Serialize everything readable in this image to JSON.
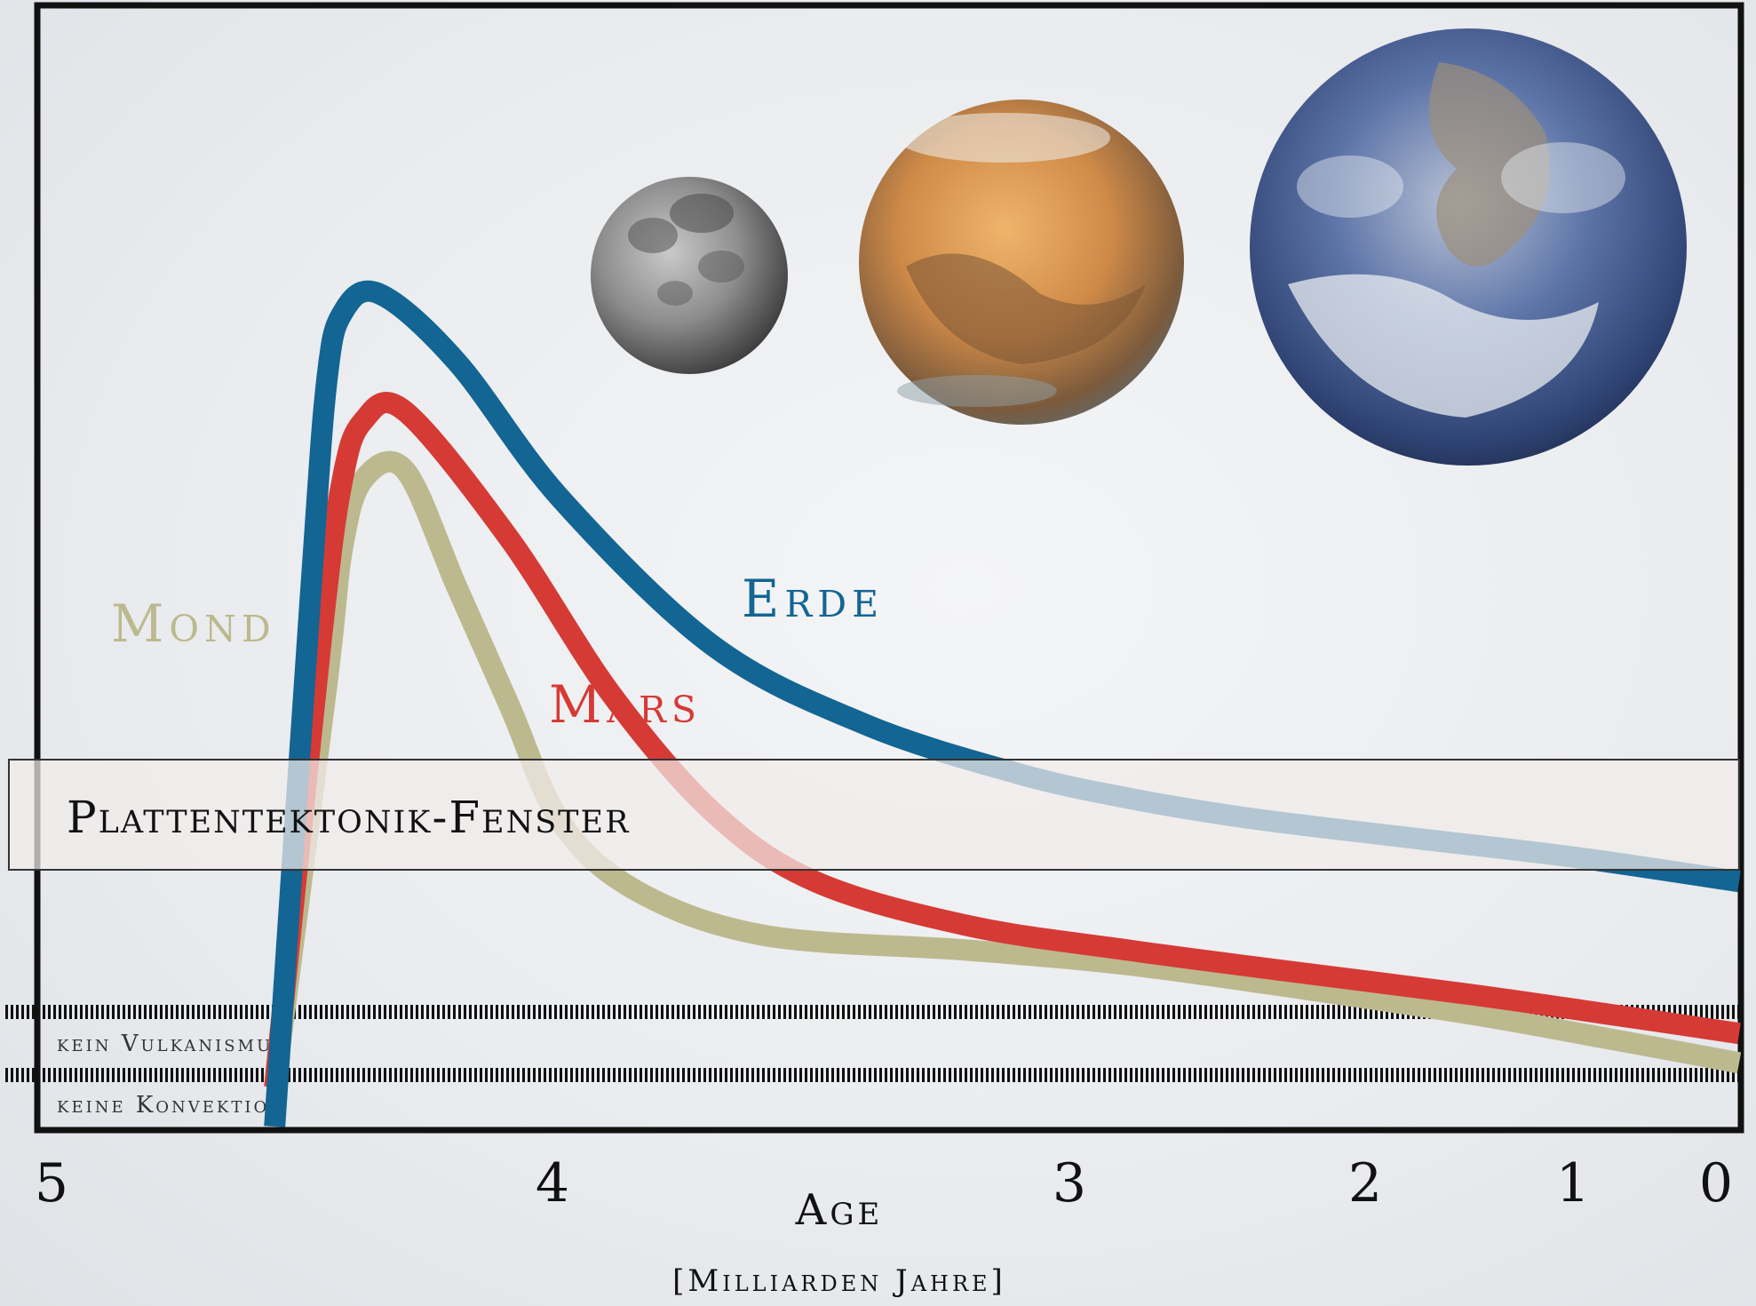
{
  "chart_data": {
    "type": "line",
    "xlabel": "Age",
    "xunit": "[Milliarden Jahre]",
    "x_ticks": [
      5,
      4,
      3,
      2,
      1,
      0
    ],
    "x_reversed": true,
    "band": {
      "label": "Plattentektonik-Fenster"
    },
    "thresholds": [
      {
        "label": "kein Vulkanismus"
      },
      {
        "label": "keine Konvektion"
      }
    ],
    "series": [
      {
        "name": "Mond",
        "color": "#bdb98f",
        "x": [
          4.55,
          4.45,
          4.42,
          4.38,
          4.3,
          4.2,
          4.1,
          4.0,
          3.85,
          3.6,
          3.2,
          2.8,
          2.2,
          1.5,
          0.8,
          0.0
        ],
        "y": [
          0.04,
          0.45,
          0.59,
          0.66,
          0.67,
          0.55,
          0.43,
          0.31,
          0.24,
          0.195,
          0.18,
          0.165,
          0.14,
          0.115,
          0.09,
          0.065
        ]
      },
      {
        "name": "Mars",
        "color": "#d63a35",
        "x": [
          4.55,
          4.46,
          4.42,
          4.38,
          4.3,
          4.1,
          3.9,
          3.7,
          3.5,
          3.2,
          2.8,
          2.3,
          1.5,
          0.8,
          0.0
        ],
        "y": [
          0.04,
          0.5,
          0.66,
          0.72,
          0.73,
          0.6,
          0.44,
          0.32,
          0.25,
          0.205,
          0.18,
          0.16,
          0.135,
          0.115,
          0.095
        ]
      },
      {
        "name": "Erde",
        "color": "#136593",
        "x": [
          4.55,
          4.48,
          4.45,
          4.42,
          4.35,
          4.2,
          4.0,
          3.7,
          3.4,
          3.1,
          2.8,
          2.4,
          1.8,
          1.0,
          0.0
        ],
        "y": [
          0.0,
          0.55,
          0.76,
          0.83,
          0.85,
          0.78,
          0.64,
          0.49,
          0.41,
          0.36,
          0.335,
          0.315,
          0.295,
          0.275,
          0.25
        ]
      }
    ]
  },
  "bodies": [
    {
      "name": "moon",
      "color": "#8c8c8c"
    },
    {
      "name": "mars",
      "color": "#cf8a48"
    },
    {
      "name": "earth",
      "color": "#3d5f9c"
    }
  ]
}
